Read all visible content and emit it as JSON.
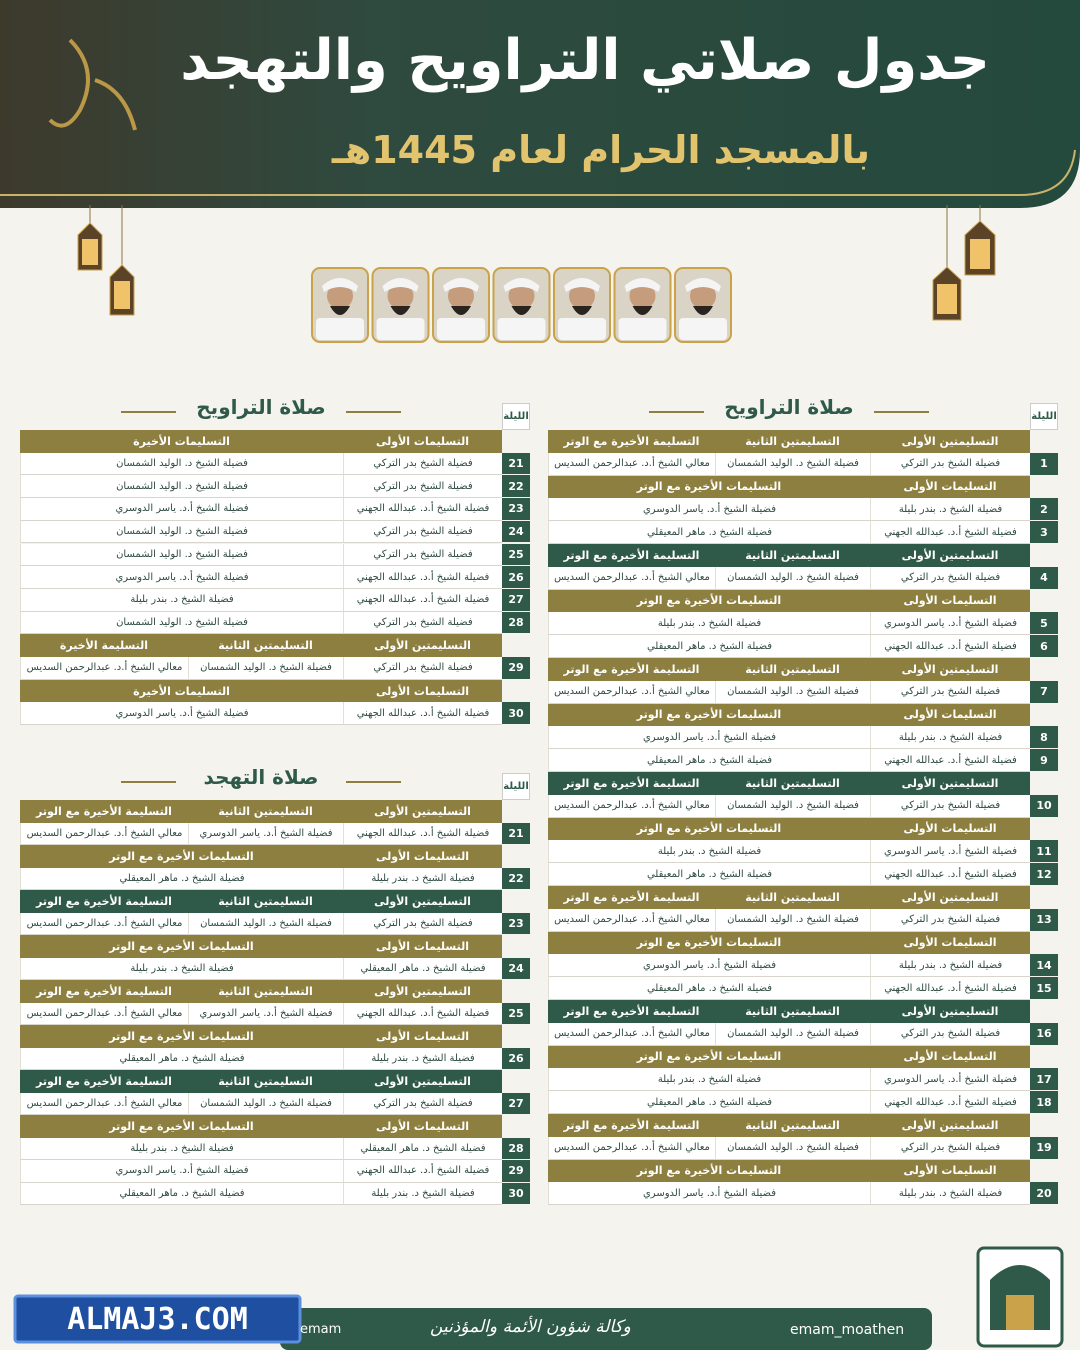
{
  "header": {
    "title": "جدول صلاتي التراويح والتهجد",
    "subtitle": "بالمسجد الحرام لعام 1445هـ"
  },
  "tables": [
    {
      "title": "صلاة التراويح",
      "night_label": "الليلة",
      "groups": [
        {
          "headers": [
            "التسليمتين الأولى",
            "التسليمتين الثانية",
            "التسليمة الأخيرة مع الوتر"
          ],
          "rows": [
            {
              "night": 1,
              "cells": [
                "فضيلة الشيخ بدر التركي",
                "فضيلة الشيخ د. الوليد الشمسان",
                "معالي الشيخ أ.د. عبدالرحمن السديس"
              ]
            }
          ]
        },
        {
          "headers": [
            "التسليمات الأولى",
            "التسليمات الأخيرة مع الوتر"
          ],
          "rows": [
            {
              "night": 2,
              "cells": [
                "فضيلة الشيخ د. بندر بليلة",
                "فضيلة الشيخ أ.د. ياسر الدوسري"
              ]
            },
            {
              "night": 3,
              "cells": [
                "فضيلة الشيخ أ.د. عبدالله الجهني",
                "فضيلة الشيخ د. ماهر المعيقلي"
              ]
            }
          ]
        },
        {
          "headers": [
            "التسليمتين الأولى",
            "التسليمتين الثانية",
            "التسليمة الأخيرة مع الوتر"
          ],
          "rows": [
            {
              "night": 4,
              "cells": [
                "فضيلة الشيخ بدر التركي",
                "فضيلة الشيخ د. الوليد الشمسان",
                "معالي الشيخ أ.د. عبدالرحمن السديس"
              ]
            }
          ]
        },
        {
          "headers": [
            "التسليمات الأولى",
            "التسليمات الأخيرة مع الوتر"
          ],
          "rows": [
            {
              "night": 5,
              "cells": [
                "فضيلة الشيخ أ.د. ياسر الدوسري",
                "فضيلة الشيخ د. بندر بليلة"
              ]
            },
            {
              "night": 6,
              "cells": [
                "فضيلة الشيخ أ.د. عبدالله الجهني",
                "فضيلة الشيخ د. ماهر المعيقلي"
              ]
            }
          ]
        },
        {
          "headers": [
            "التسليمتين الأولى",
            "التسليمتين الثانية",
            "التسليمة الأخيرة مع الوتر"
          ],
          "rows": [
            {
              "night": 7,
              "cells": [
                "فضيلة الشيخ بدر التركي",
                "فضيلة الشيخ د. الوليد الشمسان",
                "معالي الشيخ أ.د. عبدالرحمن السديس"
              ]
            }
          ]
        },
        {
          "headers": [
            "التسليمات الأولى",
            "التسليمات الأخيرة مع الوتر"
          ],
          "rows": [
            {
              "night": 8,
              "cells": [
                "فضيلة الشيخ د. بندر بليلة",
                "فضيلة الشيخ أ.د. ياسر الدوسري"
              ]
            },
            {
              "night": 9,
              "cells": [
                "فضيلة الشيخ أ.د. عبدالله الجهني",
                "فضيلة الشيخ د. ماهر المعيقلي"
              ]
            }
          ]
        },
        {
          "headers": [
            "التسليمتين الأولى",
            "التسليمتين الثانية",
            "التسليمة الأخيرة مع الوتر"
          ],
          "rows": [
            {
              "night": 10,
              "cells": [
                "فضيلة الشيخ بدر التركي",
                "فضيلة الشيخ د. الوليد الشمسان",
                "معالي الشيخ أ.د. عبدالرحمن السديس"
              ]
            }
          ]
        },
        {
          "headers": [
            "التسليمات الأولى",
            "التسليمات الأخيرة مع الوتر"
          ],
          "rows": [
            {
              "night": 11,
              "cells": [
                "فضيلة الشيخ أ.د. ياسر الدوسري",
                "فضيلة الشيخ د. بندر بليلة"
              ]
            },
            {
              "night": 12,
              "cells": [
                "فضيلة الشيخ أ.د. عبدالله الجهني",
                "فضيلة الشيخ د. ماهر المعيقلي"
              ]
            }
          ]
        },
        {
          "headers": [
            "التسليمتين الأولى",
            "التسليمتين الثانية",
            "التسليمة الأخيرة مع الوتر"
          ],
          "rows": [
            {
              "night": 13,
              "cells": [
                "فضيلة الشيخ بدر التركي",
                "فضيلة الشيخ د. الوليد الشمسان",
                "معالي الشيخ أ.د. عبدالرحمن السديس"
              ]
            }
          ]
        },
        {
          "headers": [
            "التسليمات الأولى",
            "التسليمات الأخيرة مع الوتر"
          ],
          "rows": [
            {
              "night": 14,
              "cells": [
                "فضيلة الشيخ د. بندر بليلة",
                "فضيلة الشيخ أ.د. ياسر الدوسري"
              ]
            },
            {
              "night": 15,
              "cells": [
                "فضيلة الشيخ أ.د. عبدالله الجهني",
                "فضيلة الشيخ د. ماهر المعيقلي"
              ]
            }
          ]
        },
        {
          "headers": [
            "التسليمتين الأولى",
            "التسليمتين الثانية",
            "التسليمة الأخيرة مع الوتر"
          ],
          "rows": [
            {
              "night": 16,
              "cells": [
                "فضيلة الشيخ بدر التركي",
                "فضيلة الشيخ د. الوليد الشمسان",
                "معالي الشيخ أ.د. عبدالرحمن السديس"
              ]
            }
          ]
        },
        {
          "headers": [
            "التسليمات الأولى",
            "التسليمات الأخيرة مع الوتر"
          ],
          "rows": [
            {
              "night": 17,
              "cells": [
                "فضيلة الشيخ أ.د. ياسر الدوسري",
                "فضيلة الشيخ د. بندر بليلة"
              ]
            },
            {
              "night": 18,
              "cells": [
                "فضيلة الشيخ أ.د. عبدالله الجهني",
                "فضيلة الشيخ د. ماهر المعيقلي"
              ]
            }
          ]
        },
        {
          "headers": [
            "التسليمتين الأولى",
            "التسليمتين الثانية",
            "التسليمة الأخيرة مع الوتر"
          ],
          "rows": [
            {
              "night": 19,
              "cells": [
                "فضيلة الشيخ بدر التركي",
                "فضيلة الشيخ د. الوليد الشمسان",
                "معالي الشيخ أ.د. عبدالرحمن السديس"
              ]
            }
          ]
        },
        {
          "headers": [
            "التسليمات الأولى",
            "التسليمات الأخيرة مع الوتر"
          ],
          "rows": [
            {
              "night": 20,
              "cells": [
                "فضيلة الشيخ د. بندر بليلة",
                "فضيلة الشيخ أ.د. ياسر الدوسري"
              ]
            }
          ]
        }
      ]
    },
    {
      "title": "صلاة التراويح",
      "night_label": "الليلة",
      "groups": [
        {
          "headers": [
            "التسليمات الأولى",
            "التسليمات الأخيرة"
          ],
          "rows": [
            {
              "night": 21,
              "cells": [
                "فضيلة الشيخ بدر التركي",
                "فضيلة الشيخ د. الوليد الشمسان"
              ]
            },
            {
              "night": 22,
              "cells": [
                "فضيلة الشيخ بدر التركي",
                "فضيلة الشيخ د. الوليد الشمسان"
              ]
            },
            {
              "night": 23,
              "cells": [
                "فضيلة الشيخ أ.د. عبدالله الجهني",
                "فضيلة الشيخ أ.د. ياسر الدوسري"
              ]
            },
            {
              "night": 24,
              "cells": [
                "فضيلة الشيخ بدر التركي",
                "فضيلة الشيخ د. الوليد الشمسان"
              ]
            },
            {
              "night": 25,
              "cells": [
                "فضيلة الشيخ بدر التركي",
                "فضيلة الشيخ د. الوليد الشمسان"
              ]
            },
            {
              "night": 26,
              "cells": [
                "فضيلة الشيخ أ.د. عبدالله الجهني",
                "فضيلة الشيخ أ.د. ياسر الدوسري"
              ]
            },
            {
              "night": 27,
              "cells": [
                "فضيلة الشيخ أ.د. عبدالله الجهني",
                "فضيلة الشيخ د. بندر بليلة"
              ]
            },
            {
              "night": 28,
              "cells": [
                "فضيلة الشيخ بدر التركي",
                "فضيلة الشيخ د. الوليد الشمسان"
              ]
            }
          ]
        },
        {
          "headers": [
            "التسليمتين الأولى",
            "التسليمتين الثانية",
            "التسليمة الأخيرة"
          ],
          "rows": [
            {
              "night": 29,
              "cells": [
                "فضيلة الشيخ بدر التركي",
                "فضيلة الشيخ د. الوليد الشمسان",
                "معالي الشيخ أ.د. عبدالرحمن السديس"
              ]
            }
          ]
        },
        {
          "headers": [
            "التسليمات الأولى",
            "التسليمات الأخيرة"
          ],
          "rows": [
            {
              "night": 30,
              "cells": [
                "فضيلة الشيخ أ.د. عبدالله الجهني",
                "فضيلة الشيخ أ.د. ياسر الدوسري"
              ]
            }
          ]
        }
      ]
    },
    {
      "title": "صلاة التهجد",
      "night_label": "الليلة",
      "groups": [
        {
          "headers": [
            "التسليمتين الأولى",
            "التسليمتين الثانية",
            "التسليمة الأخيرة مع الوتر"
          ],
          "rows": [
            {
              "night": 21,
              "cells": [
                "فضيلة الشيخ أ.د. عبدالله الجهني",
                "فضيلة الشيخ أ.د. ياسر الدوسري",
                "معالي الشيخ أ.د. عبدالرحمن السديس"
              ]
            }
          ]
        },
        {
          "headers": [
            "التسليمات الأولى",
            "التسليمات الأخيرة مع الوتر"
          ],
          "rows": [
            {
              "night": 22,
              "cells": [
                "فضيلة الشيخ د. بندر بليلة",
                "فضيلة الشيخ د. ماهر المعيقلي"
              ]
            }
          ]
        },
        {
          "headers": [
            "التسليمتين الأولى",
            "التسليمتين الثانية",
            "التسليمة الأخيرة مع الوتر"
          ],
          "rows": [
            {
              "night": 23,
              "cells": [
                "فضيلة الشيخ بدر التركي",
                "فضيلة الشيخ د. الوليد الشمسان",
                "معالي الشيخ أ.د. عبدالرحمن السديس"
              ]
            }
          ]
        },
        {
          "headers": [
            "التسليمات الأولى",
            "التسليمات الأخيرة مع الوتر"
          ],
          "rows": [
            {
              "night": 24,
              "cells": [
                "فضيلة الشيخ د. ماهر المعيقلي",
                "فضيلة الشيخ د. بندر بليلة"
              ]
            }
          ]
        },
        {
          "headers": [
            "التسليمتين الأولى",
            "التسليمتين الثانية",
            "التسليمة الأخيرة مع الوتر"
          ],
          "rows": [
            {
              "night": 25,
              "cells": [
                "فضيلة الشيخ أ.د. عبدالله الجهني",
                "فضيلة الشيخ أ.د. ياسر الدوسري",
                "معالي الشيخ أ.د. عبدالرحمن السديس"
              ]
            }
          ]
        },
        {
          "headers": [
            "التسليمات الأولى",
            "التسليمات الأخيرة مع الوتر"
          ],
          "rows": [
            {
              "night": 26,
              "cells": [
                "فضيلة الشيخ د. بندر بليلة",
                "فضيلة الشيخ د. ماهر المعيقلي"
              ]
            }
          ]
        },
        {
          "headers": [
            "التسليمتين الأولى",
            "التسليمتين الثانية",
            "التسليمة الأخيرة مع الوتر"
          ],
          "rows": [
            {
              "night": 27,
              "cells": [
                "فضيلة الشيخ بدر التركي",
                "فضيلة الشيخ د. الوليد الشمسان",
                "معالي الشيخ أ.د. عبدالرحمن السديس"
              ]
            }
          ]
        },
        {
          "headers": [
            "التسليمات الأولى",
            "التسليمات الأخيرة مع الوتر"
          ],
          "rows": [
            {
              "night": 28,
              "cells": [
                "فضيلة الشيخ د. ماهر المعيقلي",
                "فضيلة الشيخ د. بندر بليلة"
              ]
            },
            {
              "night": 29,
              "cells": [
                "فضيلة الشيخ أ.د. عبدالله الجهني",
                "فضيلة الشيخ أ.د. ياسر الدوسري"
              ]
            },
            {
              "night": 30,
              "cells": [
                "فضيلة الشيخ د. بندر بليلة",
                "فضيلة الشيخ د. ماهر المعيقلي"
              ]
            }
          ]
        }
      ]
    }
  ],
  "footer": {
    "watermark": "ALMAJ3.COM",
    "handle_left": "emam",
    "agency": "وكالة شؤون الأئمة والمؤذنين",
    "handle_right": "emam_moathen"
  }
}
